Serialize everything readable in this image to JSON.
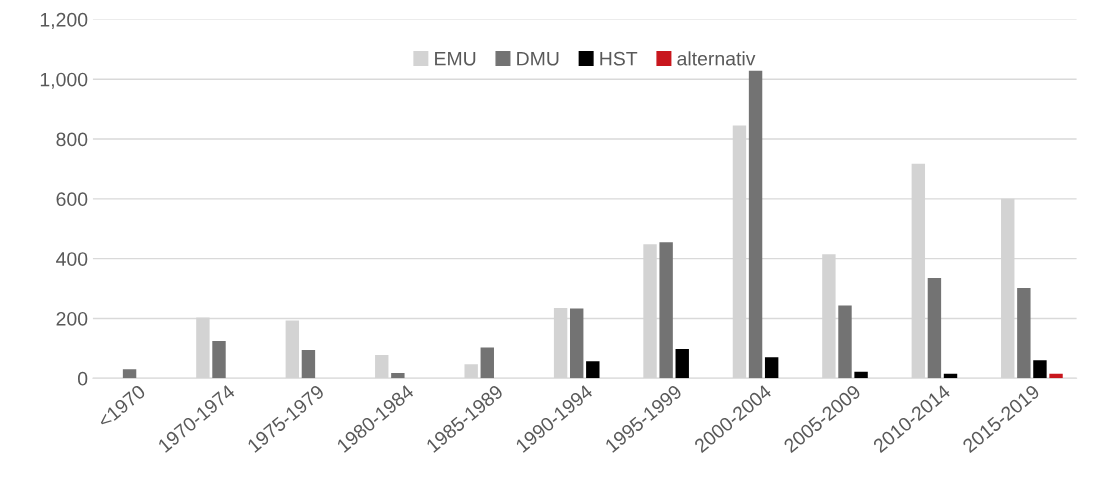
{
  "chart_data": {
    "type": "bar",
    "categories": [
      "<1970",
      "1970-1974",
      "1975-1979",
      "1980-1984",
      "1985-1989",
      "1990-1994",
      "1995-1999",
      "2000-2004",
      "2005-2009",
      "2010-2014",
      "2015-2019"
    ],
    "series": [
      {
        "name": "EMU",
        "color": "#d3d3d3",
        "values": [
          null,
          203,
          193,
          78,
          47,
          235,
          448,
          845,
          415,
          717,
          600
        ]
      },
      {
        "name": "DMU",
        "color": "#737373",
        "values": [
          30,
          125,
          95,
          18,
          103,
          233,
          455,
          1028,
          243,
          335,
          302
        ]
      },
      {
        "name": "HST",
        "color": "#000000",
        "values": [
          0,
          0,
          0,
          0,
          0,
          57,
          98,
          70,
          22,
          15,
          60
        ]
      },
      {
        "name": "alternativ",
        "color": "#c8161d",
        "values": [
          0,
          0,
          0,
          0,
          0,
          0,
          0,
          0,
          0,
          0,
          15
        ]
      }
    ],
    "ylim": [
      0,
      1200
    ],
    "yticks": [
      {
        "value": 0,
        "label": "0"
      },
      {
        "value": 200,
        "label": "200"
      },
      {
        "value": 400,
        "label": "400"
      },
      {
        "value": 600,
        "label": "600"
      },
      {
        "value": 800,
        "label": "800"
      },
      {
        "value": 1000,
        "label": "1,000"
      },
      {
        "value": 1200,
        "label": "1,200"
      }
    ],
    "grid": "y",
    "legend": "top"
  }
}
